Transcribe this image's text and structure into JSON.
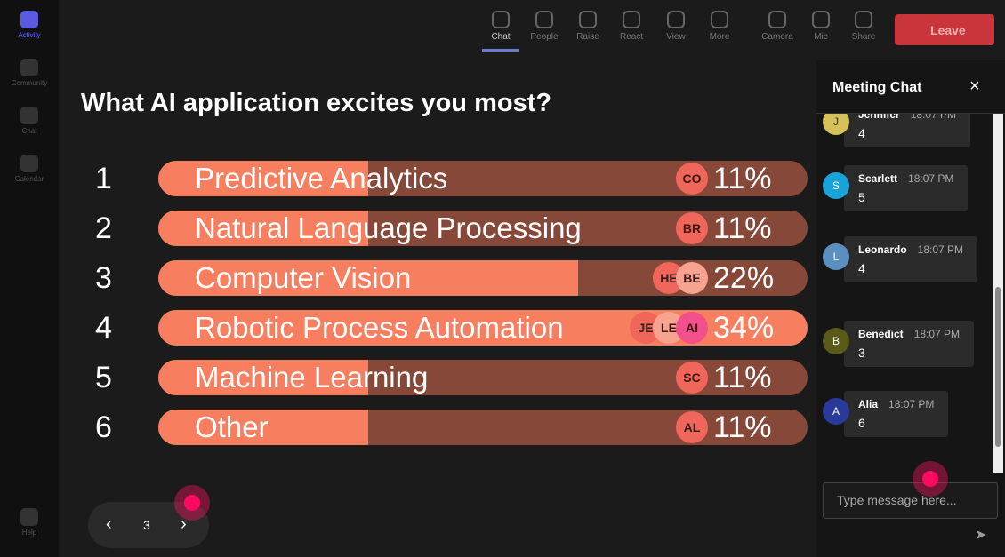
{
  "sidebar": [
    {
      "label": "Activity"
    },
    {
      "label": "Community"
    },
    {
      "label": "Chat"
    },
    {
      "label": "Calendar"
    },
    {
      "label": "Help"
    }
  ],
  "toolbar": [
    {
      "label": "Chat"
    },
    {
      "label": "People"
    },
    {
      "label": "Raise"
    },
    {
      "label": "React"
    },
    {
      "label": "View"
    },
    {
      "label": "More"
    },
    {
      "label": "Camera"
    },
    {
      "label": "Mic"
    },
    {
      "label": "Share"
    }
  ],
  "leave_button": "Leave",
  "poll": {
    "question": "What AI application excites you most?",
    "rows": [
      {
        "rank": 1,
        "label": "Predictive Analytics",
        "value": 11,
        "value_label": "11%",
        "voters": [
          {
            "initials": "CO",
            "color": "#f0665a"
          }
        ]
      },
      {
        "rank": 2,
        "label": "Natural Language Processing",
        "value": 11,
        "value_label": "11%",
        "voters": [
          {
            "initials": "BR",
            "color": "#f0665a"
          }
        ]
      },
      {
        "rank": 3,
        "label": "Computer Vision",
        "value": 22,
        "value_label": "22%",
        "voters": [
          {
            "initials": "HE",
            "color": "#f0665a"
          },
          {
            "initials": "BE",
            "color": "#f7a38f"
          }
        ]
      },
      {
        "rank": 4,
        "label": "Robotic Process Automation",
        "value": 34,
        "value_label": "34%",
        "voters": [
          {
            "initials": "JE",
            "color": "#f0665a"
          },
          {
            "initials": "LE",
            "color": "#f7a38f"
          },
          {
            "initials": "AI",
            "color": "#f2508a"
          }
        ]
      },
      {
        "rank": 5,
        "label": "Machine Learning",
        "value": 11,
        "value_label": "11%",
        "voters": [
          {
            "initials": "SC",
            "color": "#f0665a"
          }
        ]
      },
      {
        "rank": 6,
        "label": "Other",
        "value": 11,
        "value_label": "11%",
        "voters": [
          {
            "initials": "AL",
            "color": "#f0665a"
          }
        ]
      }
    ],
    "page": 3
  },
  "chat": {
    "title": "Meeting Chat",
    "messages": [
      {
        "initial": "J",
        "color": "#d6c15a",
        "name": "Jennifer",
        "time": "18:07 PM",
        "text": "4"
      },
      {
        "initial": "S",
        "color": "#1aa3d9",
        "name": "Scarlett",
        "time": "18:07 PM",
        "text": "5"
      },
      {
        "initial": "L",
        "color": "#5a8fc0",
        "name": "Leonardo",
        "time": "18:07 PM",
        "text": "4"
      },
      {
        "initial": "B",
        "color": "#5a5a1a",
        "name": "Benedict",
        "time": "18:07 PM",
        "text": "3"
      },
      {
        "initial": "A",
        "color": "#2a3a9a",
        "name": "Alia",
        "time": "18:07 PM",
        "text": "6"
      }
    ],
    "placeholder": "Type message here..."
  }
}
